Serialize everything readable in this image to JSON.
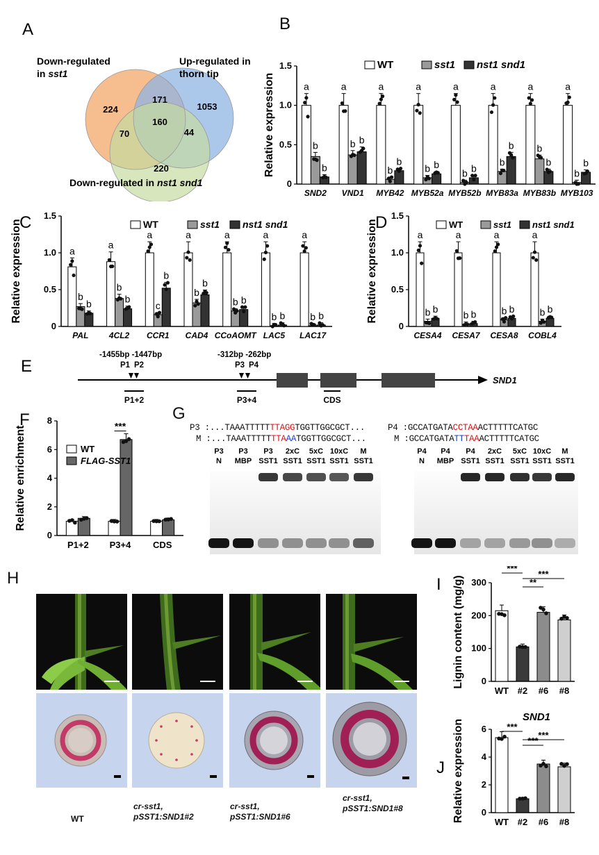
{
  "panelA": {
    "label": "A",
    "set_labels": {
      "sst1_line1": "Down-regulated",
      "sst1_line2": "in ",
      "sst1_gene": "sst1",
      "thorn_line1": "Up-regulated in",
      "thorn_line2": "thorn tip",
      "nst_line": "Down-regulated in ",
      "nst_gene": "nst1 snd1"
    },
    "counts": {
      "sst1_only": "224",
      "thorn_only": "1053",
      "nst_only": "220",
      "sst1_thorn": "171",
      "sst1_nst": "70",
      "thorn_nst": "44",
      "all": "160"
    },
    "colors": {
      "sst1": "#f5b27a",
      "thorn": "#8fb4e3",
      "nst": "#c6dba1"
    }
  },
  "legend": {
    "wt": "WT",
    "sst1": "sst1",
    "nst": "nst1 snd1"
  },
  "chart_data": [
    {
      "panel": "B",
      "type": "bar",
      "ylabel": "Relative expression",
      "ylim": [
        0,
        1.5
      ],
      "yticks": [
        "0",
        "0.5",
        "1.0",
        "1.5"
      ],
      "categories": [
        "SND2",
        "VND1",
        "MYB42",
        "MYB52a",
        "MYB52b",
        "MYB83a",
        "MYB83b",
        "MYB103"
      ],
      "series": [
        {
          "name": "WT",
          "values": [
            1.0,
            1.0,
            1.0,
            1.0,
            1.0,
            1.0,
            1.0,
            1.0
          ],
          "sig": [
            "a",
            "a",
            "a",
            "a",
            "a",
            "a",
            "a",
            "a"
          ]
        },
        {
          "name": "sst1",
          "values": [
            0.35,
            0.37,
            0.06,
            0.08,
            0.02,
            0.16,
            0.32,
            0.02
          ],
          "sig": [
            "b",
            "b",
            "b",
            "b",
            "b",
            "b",
            "b",
            "b"
          ]
        },
        {
          "name": "nst1 snd1",
          "values": [
            0.09,
            0.41,
            0.17,
            0.13,
            0.08,
            0.35,
            0.16,
            0.15
          ],
          "sig": [
            "b",
            "b",
            "b",
            "b",
            "b",
            "b",
            "b",
            "b"
          ]
        }
      ]
    },
    {
      "panel": "C",
      "type": "bar",
      "ylabel": "Relative expression",
      "ylim": [
        0,
        1.5
      ],
      "yticks": [
        "0",
        "0.5",
        "1.0",
        "1.5"
      ],
      "categories": [
        "PAL",
        "4CL2",
        "CCR1",
        "CAD4",
        "CCoAOMT",
        "LAC5",
        "LAC17"
      ],
      "series": [
        {
          "name": "WT",
          "values": [
            0.81,
            0.88,
            1.0,
            1.0,
            1.0,
            1.0,
            1.0
          ],
          "sig": [
            "a",
            "a",
            "a",
            "a",
            "a",
            "a",
            "a"
          ]
        },
        {
          "name": "sst1",
          "values": [
            0.27,
            0.38,
            0.16,
            0.32,
            0.21,
            0.01,
            0.01
          ],
          "sig": [
            "b",
            "b",
            "c",
            "b",
            "b",
            "b",
            "b"
          ]
        },
        {
          "name": "nst1 snd1",
          "values": [
            0.18,
            0.24,
            0.52,
            0.43,
            0.23,
            0.02,
            0.02
          ],
          "sig": [
            "b",
            "b",
            "b",
            "b",
            "b",
            "b",
            "b"
          ]
        }
      ]
    },
    {
      "panel": "D",
      "type": "bar",
      "ylabel": "Relative expression",
      "ylim": [
        0,
        1.5
      ],
      "yticks": [
        "0",
        "0.5",
        "1.0",
        "1.5"
      ],
      "categories": [
        "CESA4",
        "CESA7",
        "CESA8",
        "COBL4"
      ],
      "series": [
        {
          "name": "WT",
          "values": [
            1.0,
            1.0,
            1.0,
            1.0
          ],
          "sig": [
            "a",
            "a",
            "a",
            "a"
          ]
        },
        {
          "name": "sst1",
          "values": [
            0.07,
            0.03,
            0.09,
            0.07
          ],
          "sig": [
            "b",
            "b",
            "b",
            "b"
          ]
        },
        {
          "name": "nst1 snd1",
          "values": [
            0.11,
            0.04,
            0.11,
            0.11
          ],
          "sig": [
            "b",
            "b",
            "b",
            "b"
          ]
        }
      ]
    },
    {
      "panel": "F",
      "type": "bar",
      "ylabel": "Relative enrichment",
      "ylim": [
        0,
        8
      ],
      "yticks": [
        "0",
        "2",
        "4",
        "6",
        "8"
      ],
      "categories": [
        "P1+2",
        "P3+4",
        "CDS"
      ],
      "series": [
        {
          "name": "WT",
          "values": [
            1.0,
            1.0,
            1.0
          ]
        },
        {
          "name": "FLAG-SST1",
          "values": [
            1.2,
            6.7,
            1.1
          ]
        }
      ],
      "annotation": "***"
    },
    {
      "panel": "I",
      "type": "bar",
      "ylabel": "Lignin content (mg/g)",
      "ylim": [
        0,
        300
      ],
      "yticks": [
        "0",
        "100",
        "200",
        "300"
      ],
      "categories": [
        "WT",
        "#2",
        "#6",
        "#8"
      ],
      "values": [
        215,
        105,
        210,
        187
      ],
      "colors": [
        "#ffffff",
        "#3a3a3a",
        "#8c8c8c",
        "#cfcfcf"
      ],
      "brackets": [
        {
          "from": 0,
          "to": 1,
          "text": "***"
        },
        {
          "from": 1,
          "to": 2,
          "text": "**"
        },
        {
          "from": 1,
          "to": 3,
          "text": "***"
        }
      ]
    },
    {
      "panel": "J",
      "type": "bar",
      "title": "SND1",
      "ylabel": "Relative expression",
      "ylim": [
        0,
        6
      ],
      "yticks": [
        "0",
        "2",
        "4",
        "6"
      ],
      "categories": [
        "WT",
        "#2",
        "#6",
        "#8"
      ],
      "values": [
        5.4,
        1.0,
        3.5,
        3.3
      ],
      "colors": [
        "#ffffff",
        "#3a3a3a",
        "#8c8c8c",
        "#cfcfcf"
      ],
      "brackets": [
        {
          "from": 0,
          "to": 1,
          "text": "***"
        },
        {
          "from": 1,
          "to": 2,
          "text": "***"
        },
        {
          "from": 1,
          "to": 3,
          "text": "***"
        }
      ]
    }
  ],
  "panelE": {
    "label": "E",
    "gene": "SND1",
    "p1p2_pos": "-1455bp -1447bp",
    "p1": "P1",
    "p2": "P2",
    "p3p4_pos": "-312bp -262bp",
    "p3": "P3",
    "p4": "P4",
    "region1": "P1+2",
    "region2": "P3+4",
    "region3": "CDS"
  },
  "panelF": {
    "label": "F",
    "legend_wt": "WT",
    "legend_flag": "FLAG-SST1"
  },
  "panelG": {
    "label": "G",
    "p3_label": "P3 :",
    "p3_pre": "...TAAATTTTT",
    "p3_core": "TTAGG",
    "p3_post": "TGGTTGGCGCT...",
    "m_label": "M :",
    "m_pre": "...TAAATTTTT",
    "m_core_a": "TTA",
    "m_core_b": "AA",
    "m_post": "TGGTTGGCGCT...",
    "p4_label": "P4 :",
    "p4_pre": "GCCATGATA",
    "p4_core": "CCTAA",
    "p4_post": "ACTTTTTCATGC",
    "m4_label": "M :",
    "m4_pre": "GCCATGATA",
    "m4_core_a": "TT",
    "m4_core_b": "TAA",
    "m4_post": "ACTTTTTCATGC",
    "lanes_left": [
      [
        "P3",
        "N"
      ],
      [
        "P3",
        "MBP"
      ],
      [
        "P3",
        "SST1"
      ],
      [
        "2xC",
        "SST1"
      ],
      [
        "5xC",
        "SST1"
      ],
      [
        "10xC",
        "SST1"
      ],
      [
        "M",
        "SST1"
      ]
    ],
    "lanes_right": [
      [
        "P4",
        "N"
      ],
      [
        "P4",
        "MBP"
      ],
      [
        "P4",
        "SST1"
      ],
      [
        "2xC",
        "SST1"
      ],
      [
        "5xC",
        "SST1"
      ],
      [
        "10xC",
        "SST1"
      ],
      [
        "M",
        "SST1"
      ]
    ]
  },
  "panelH": {
    "label": "H",
    "captions": [
      {
        "l1": "WT",
        "l2": ""
      },
      {
        "l1": "cr-sst1,",
        "l2": "pSST1:SND1#2"
      },
      {
        "l1": "cr-sst1,",
        "l2": "pSST1:SND1#6"
      },
      {
        "l1": "cr-sst1,",
        "l2": "pSST1:SND1#8"
      }
    ]
  },
  "labels": {
    "B": "B",
    "C": "C",
    "D": "D",
    "I": "I",
    "J": "J"
  }
}
